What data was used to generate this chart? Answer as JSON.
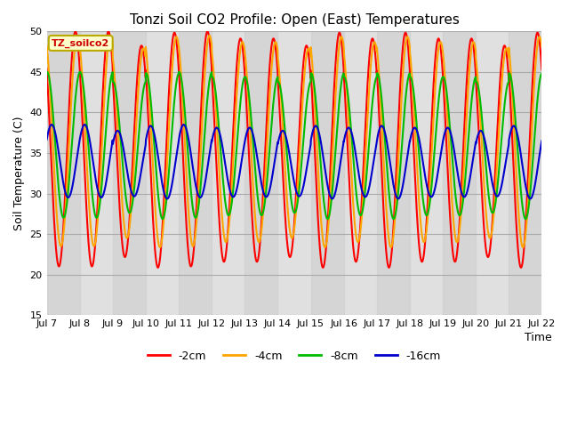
{
  "title": "Tonzi Soil CO2 Profile: Open (East) Temperatures",
  "xlabel": "Time",
  "ylabel": "Soil Temperature (C)",
  "ylim": [
    15,
    50
  ],
  "xlim_days": [
    7,
    22
  ],
  "xtick_days": [
    7,
    8,
    9,
    10,
    11,
    12,
    13,
    14,
    15,
    16,
    17,
    18,
    19,
    20,
    21,
    22
  ],
  "xtick_labels": [
    "Jul 7",
    "Jul 8",
    "Jul 9",
    "Jul 10",
    "Jul 11",
    "Jul 12",
    "Jul 13",
    "Jul 14",
    "Jul 15",
    "Jul 16",
    "Jul 17",
    "Jul 18",
    "Jul 19",
    "Jul 20",
    "Jul 21",
    "Jul 22"
  ],
  "ytick_vals": [
    15,
    20,
    25,
    30,
    35,
    40,
    45,
    50
  ],
  "colors": {
    "-2cm": "#ff0000",
    "-4cm": "#ffa500",
    "-8cm": "#00bb00",
    "-16cm": "#0000cc"
  },
  "legend_labels": [
    "-2cm",
    "-4cm",
    "-8cm",
    "-16cm"
  ],
  "label_box": "TZ_soilco2",
  "plot_bg": "#e0e0e0",
  "grid_color": "#c8c8c8",
  "linewidth": 1.5,
  "series_params": {
    "-2cm": {
      "mean": 35.5,
      "amp": 14.5,
      "phase": 0.62,
      "lag": 0.0
    },
    "-4cm": {
      "mean": 36.5,
      "amp": 13.0,
      "phase": 0.62,
      "lag": 0.06
    },
    "-8cm": {
      "mean": 36.0,
      "amp": 9.0,
      "phase": 0.62,
      "lag": 0.14
    },
    "-16cm": {
      "mean": 34.0,
      "amp": 4.5,
      "phase": 0.62,
      "lag": 0.28
    }
  },
  "day_amplitudes": [
    1.0,
    1.0,
    0.9,
    1.0,
    1.0,
    0.95,
    0.95,
    0.9,
    1.0,
    0.95,
    1.0,
    0.95,
    0.95,
    0.9,
    1.0
  ],
  "day_means": [
    35.5,
    35.5,
    34.5,
    35.0,
    35.5,
    35.0,
    35.0,
    34.5,
    35.0,
    35.0,
    35.0,
    35.0,
    35.0,
    34.5,
    35.0
  ]
}
